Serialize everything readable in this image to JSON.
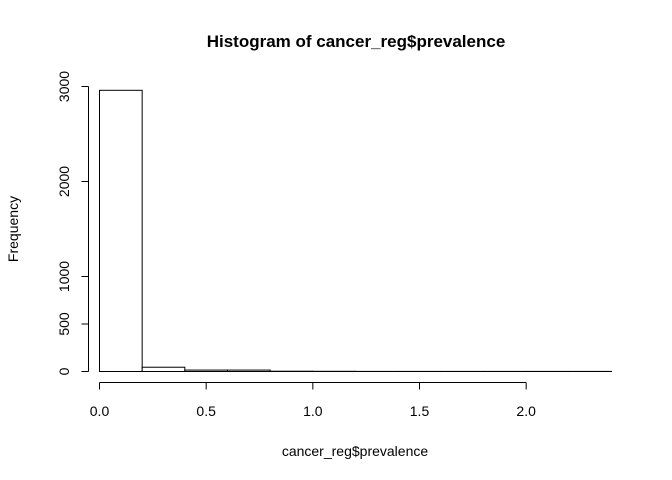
{
  "chart_data": {
    "type": "bar",
    "title": "Histogram of cancer_reg$prevalence",
    "xlabel": "cancer_reg$prevalence",
    "ylabel": "Frequency",
    "bin_edges": [
      0.0,
      0.2,
      0.4,
      0.6,
      0.8,
      1.0,
      1.2,
      1.4,
      1.6,
      1.8,
      2.0,
      2.2,
      2.4
    ],
    "values": [
      2960,
      45,
      15,
      15,
      3,
      2,
      1,
      1,
      1,
      1,
      1,
      1
    ],
    "x_ticks": [
      0.0,
      0.5,
      1.0,
      1.5,
      2.0
    ],
    "x_tick_labels": [
      "0.0",
      "0.5",
      "1.0",
      "1.5",
      "2.0"
    ],
    "y_ticks": [
      0,
      500,
      1000,
      2000,
      3000
    ],
    "y_tick_labels": [
      "0",
      "500",
      "1000",
      "2000",
      "3000"
    ],
    "xlim": [
      0,
      2.4
    ],
    "ylim": [
      0,
      3000
    ],
    "grid": false,
    "bar_fill": "#ffffff",
    "bar_stroke": "#000000"
  }
}
